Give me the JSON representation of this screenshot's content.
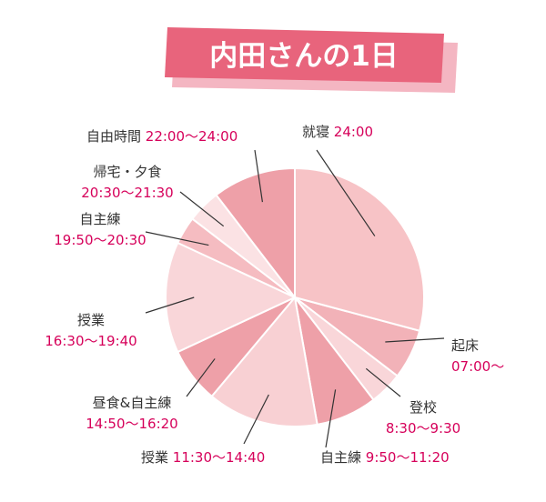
{
  "chart_data": {
    "type": "pie",
    "title": "内田さんの1日",
    "start_angle_deg": 0,
    "total_minutes": 1440,
    "slices": [
      {
        "name": "起床",
        "time": "07:00〜",
        "start": "07:00",
        "end": "08:30",
        "color": "#f2b2b8"
      },
      {
        "name": "登校",
        "time": "8:30〜9:30",
        "start": "08:30",
        "end": "09:30",
        "color": "#f9d6d9"
      },
      {
        "name": "自主練",
        "time": "9:50〜11:20",
        "start": "09:30",
        "end": "11:20",
        "color": "#eea0a8"
      },
      {
        "name": "授業",
        "time": "11:30〜14:40",
        "start": "11:20",
        "end": "14:40",
        "color": "#f8d0d3"
      },
      {
        "name": "昼食&自主練",
        "time": "14:50〜16:20",
        "start": "14:40",
        "end": "16:20",
        "color": "#eea0a8"
      },
      {
        "name": "授業",
        "time": "16:30〜19:40",
        "start": "16:20",
        "end": "19:40",
        "color": "#f9d6d9"
      },
      {
        "name": "自主練",
        "time": "19:50〜20:30",
        "start": "19:40",
        "end": "20:30",
        "color": "#f5bcc1"
      },
      {
        "name": "帰宅・夕食",
        "time": "20:30〜21:30",
        "start": "20:30",
        "end": "21:30",
        "color": "#fbe2e4"
      },
      {
        "name": "自由時間",
        "time": "22:00〜24:00",
        "start": "21:30",
        "end": "24:00",
        "color": "#eea0a8"
      },
      {
        "name": "就寝",
        "time": "24:00",
        "start": "00:00",
        "end": "07:00",
        "color": "#f7c3c6"
      }
    ]
  },
  "colors": {
    "title_bg": "#e8647c",
    "title_shadow": "#f4b6c2",
    "title_text": "#ffffff",
    "label_text": "#333333",
    "time_text": "#d6005a",
    "leader": "#333333",
    "slice_border": "#ffffff"
  }
}
